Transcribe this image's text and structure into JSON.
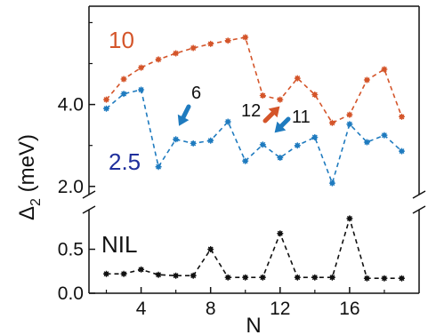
{
  "chart_data": {
    "type": "line",
    "xlabel": "N",
    "ylabel_main": "Δ",
    "ylabel_sub": "2",
    "ylabel_unit": " (meV)",
    "x_ticks": [
      4,
      8,
      12,
      16
    ],
    "x_tick_labels": [
      "4",
      "8",
      "12",
      "16"
    ],
    "xlim": [
      1,
      20
    ],
    "axis_break": true,
    "upper_panel": {
      "ylim": [
        1.8,
        6.4
      ],
      "y_ticks": [
        2.0,
        4.0
      ],
      "y_tick_labels": [
        "2.0",
        "4.0"
      ]
    },
    "lower_panel": {
      "ylim": [
        0,
        0.95
      ],
      "y_ticks": [
        0.0,
        0.5
      ],
      "y_tick_labels": [
        "0.0",
        "0.5"
      ]
    },
    "series": [
      {
        "name": "10",
        "panel": "upper",
        "color": "#d4552a",
        "x": [
          2,
          3,
          4,
          5,
          6,
          7,
          8,
          9,
          10,
          11,
          12,
          13,
          14,
          15,
          16,
          17,
          18,
          19
        ],
        "y": [
          4.12,
          4.62,
          4.9,
          5.1,
          5.25,
          5.38,
          5.48,
          5.56,
          5.64,
          4.22,
          4.12,
          4.64,
          4.24,
          3.55,
          3.75,
          4.6,
          4.86,
          3.7
        ]
      },
      {
        "name": "2.5",
        "panel": "upper",
        "color": "#1f7bbf",
        "x": [
          2,
          3,
          4,
          5,
          6,
          7,
          8,
          9,
          10,
          11,
          12,
          13,
          14,
          15,
          16,
          17,
          18,
          19
        ],
        "y": [
          3.9,
          4.26,
          4.36,
          2.48,
          3.15,
          3.05,
          3.12,
          3.58,
          2.62,
          3.02,
          2.7,
          3.0,
          3.2,
          2.08,
          3.52,
          3.08,
          3.25,
          2.86
        ]
      },
      {
        "name": "NIL",
        "panel": "lower",
        "color": "#111111",
        "x": [
          2,
          3,
          4,
          5,
          6,
          7,
          8,
          9,
          10,
          11,
          12,
          13,
          14,
          15,
          16,
          17,
          18,
          19
        ],
        "y": [
          0.22,
          0.22,
          0.27,
          0.21,
          0.2,
          0.2,
          0.5,
          0.18,
          0.18,
          0.18,
          0.68,
          0.18,
          0.18,
          0.18,
          0.85,
          0.17,
          0.17,
          0.17
        ]
      }
    ],
    "annotations": [
      {
        "text": "6",
        "color": "#111111",
        "arrow_color": "#1f7bbf",
        "points_to": [
          6,
          3.15
        ]
      },
      {
        "text": "12",
        "color": "#111111",
        "arrow_color": "#d4552a",
        "points_to": [
          12,
          4.12
        ]
      },
      {
        "text": "11",
        "color": "#111111",
        "arrow_color": "#1f7bbf",
        "points_to": [
          11,
          3.02
        ]
      }
    ]
  }
}
